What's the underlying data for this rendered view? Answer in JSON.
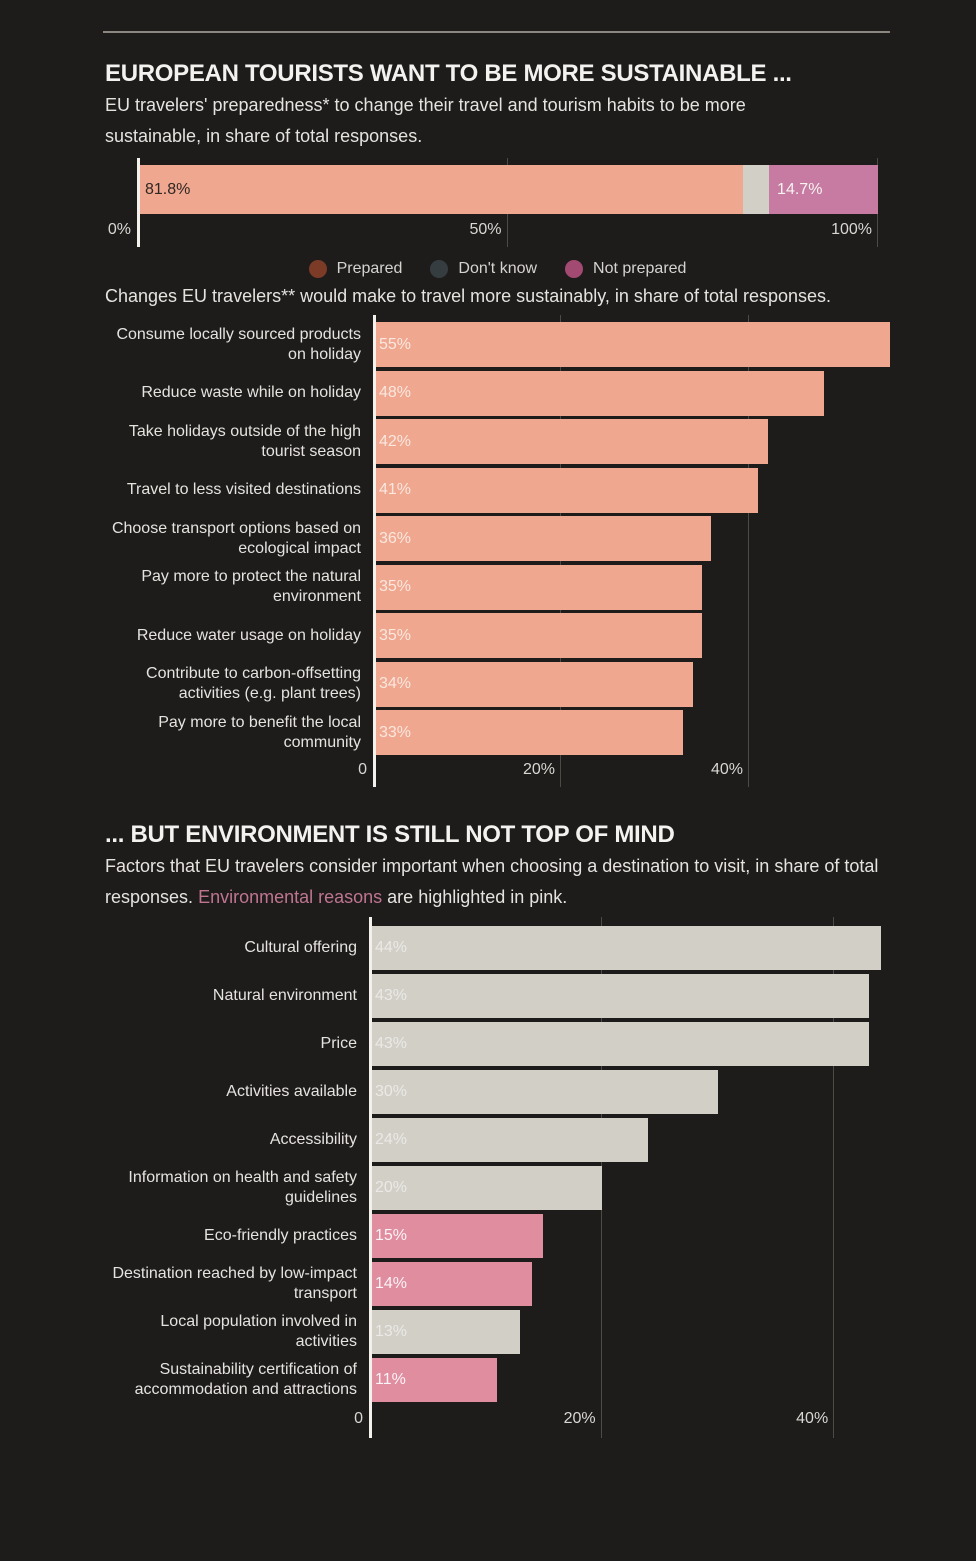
{
  "page_bg": "#1d1c1b",
  "header": {
    "title": "EUROPEAN TOURISTS WANT TO BE MORE SUSTAINABLE ...",
    "subtitle": "EU travelers' preparedness* to change their travel and tourism habits to be more sustainable, in share of total responses."
  },
  "changes_intro": "Changes EU travelers** would make to travel more sustainably, in share of total responses.",
  "section2": {
    "title": "... BUT ENVIRONMENT IS STILL NOT TOP OF MIND",
    "intro_part1": "Factors that EU travelers consider important when choosing a destination to visit, in share of total responses. ",
    "intro_highlight": "Environmental reasons",
    "intro_part2": " are highlighted in pink.",
    "highlight_color": "#bf7590"
  },
  "colors": {
    "salmon": "#f0a78f",
    "gray_bar": "#d2cfc7",
    "pink_bar": "#e08da0",
    "mauve": "#c77ba2",
    "axis_line": "#f4f1ed",
    "gridline": "#4c4a47"
  },
  "chart_data": [
    {
      "type": "bar",
      "variant": "stacked-horizontal",
      "xlim": [
        0,
        100
      ],
      "segments": [
        {
          "name": "Prepared",
          "value": 81.8,
          "label": "81.8%",
          "color": "#f0a78f",
          "label_color": "#2e2723"
        },
        {
          "name": "Don't know",
          "value": 3.5,
          "label": "",
          "color": "#d2cfc7",
          "label_color": ""
        },
        {
          "name": "Not prepared",
          "value": 14.7,
          "label": "14.7%",
          "color": "#c77ba2",
          "label_color": "#f7f3f0"
        }
      ],
      "ticks": [
        {
          "value": 0,
          "label": "0%"
        },
        {
          "value": 50,
          "label": "50%"
        },
        {
          "value": 100,
          "label": "100%"
        }
      ],
      "legend": [
        {
          "label": "Prepared",
          "color": "#7b3b27"
        },
        {
          "label": "Don't know",
          "color": "#363d41"
        },
        {
          "label": "Not prepared",
          "color": "#a34a72"
        }
      ]
    },
    {
      "type": "bar",
      "variant": "horizontal",
      "categories": [
        "Consume locally sourced products on holiday",
        "Reduce waste while on holiday",
        "Take holidays outside of the high tourist season",
        "Travel to less visited destinations",
        "Choose transport options based on ecological impact",
        "Pay more to protect the natural environment",
        "Reduce water usage on holiday",
        "Contribute to carbon-offsetting activities (e.g. plant trees)",
        "Pay more to benefit the local community"
      ],
      "values": [
        55,
        48,
        42,
        41,
        36,
        35,
        35,
        34,
        33
      ],
      "labels": [
        "55%",
        "48%",
        "42%",
        "41%",
        "36%",
        "35%",
        "35%",
        "34%",
        "33%"
      ],
      "bar_color": "#f0a78f",
      "xlim": [
        0,
        55
      ],
      "ticks": [
        {
          "value": 0,
          "label": "0"
        },
        {
          "value": 20,
          "label": "20%"
        },
        {
          "value": 40,
          "label": "40%"
        }
      ]
    },
    {
      "type": "bar",
      "variant": "horizontal",
      "categories": [
        "Cultural offering",
        "Natural environment",
        "Price",
        "Activities available",
        "Accessibility",
        "Information on health and safety guidelines",
        "Eco-friendly practices",
        "Destination reached by low-impact transport",
        "Local population involved in activities",
        "Sustainability certification of accommodation and attractions"
      ],
      "values": [
        44,
        43,
        43,
        30,
        24,
        20,
        15,
        14,
        13,
        11
      ],
      "labels": [
        "44%",
        "43%",
        "43%",
        "30%",
        "24%",
        "20%",
        "15%",
        "14%",
        "13%",
        "11%"
      ],
      "highlight": [
        false,
        false,
        false,
        false,
        false,
        false,
        true,
        true,
        false,
        true
      ],
      "bar_color": "#d2cfc7",
      "highlight_color": "#e08da0",
      "xlim": [
        0,
        44
      ],
      "ticks": [
        {
          "value": 0,
          "label": "0"
        },
        {
          "value": 20,
          "label": "20%"
        },
        {
          "value": 40,
          "label": "40%"
        }
      ]
    }
  ]
}
